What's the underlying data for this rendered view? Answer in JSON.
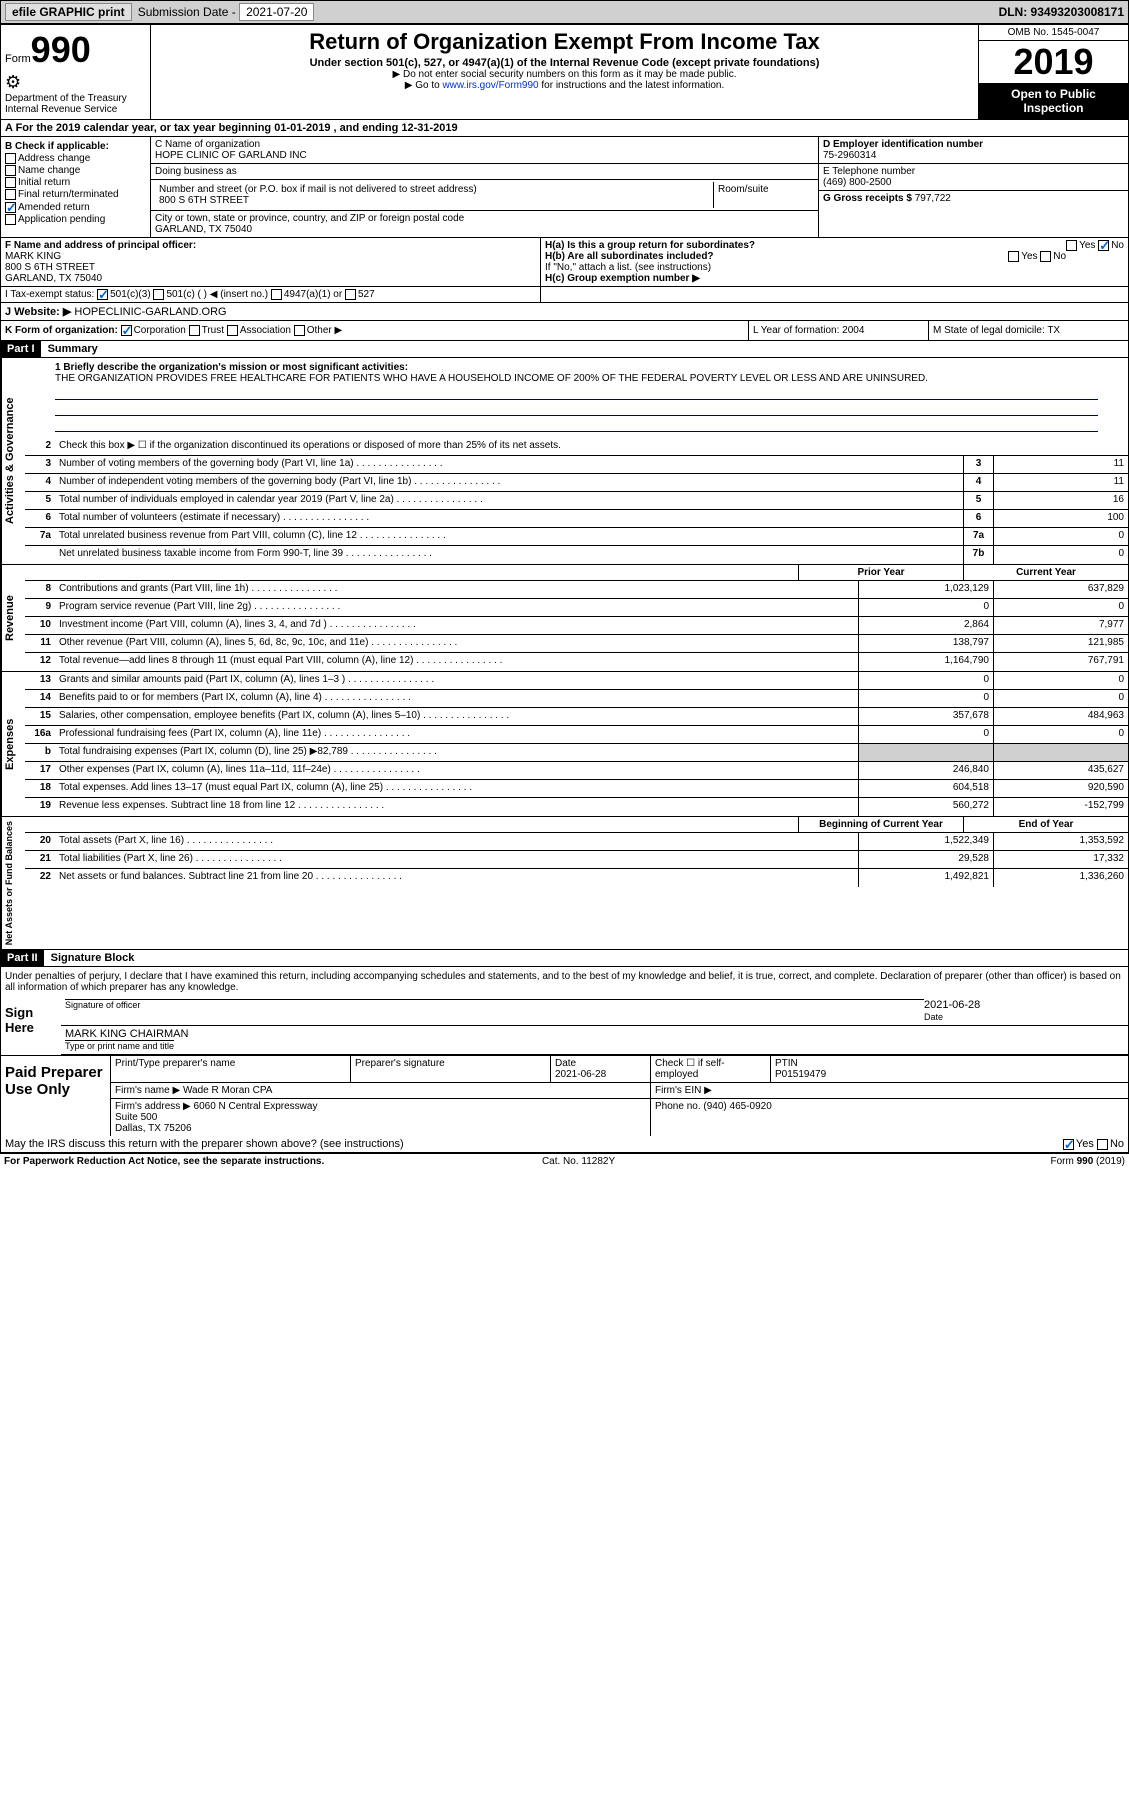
{
  "toolbar": {
    "efile": "efile GRAPHIC print",
    "subm_label": "Submission Date - ",
    "subm_date": "2021-07-20",
    "dln": "DLN: 93493203008171"
  },
  "header": {
    "form_word": "Form",
    "form_num": "990",
    "dept": "Department of the Treasury\nInternal Revenue Service",
    "title": "Return of Organization Exempt From Income Tax",
    "sub": "Under section 501(c), 527, or 4947(a)(1) of the Internal Revenue Code (except private foundations)",
    "note1": "▶ Do not enter social security numbers on this form as it may be made public.",
    "note2_pre": "▶ Go to ",
    "note2_link": "www.irs.gov/Form990",
    "note2_post": " for instructions and the latest information.",
    "omb": "OMB No. 1545-0047",
    "year": "2019",
    "open": "Open to Public Inspection"
  },
  "row_a": "A For the 2019 calendar year, or tax year beginning 01-01-2019    , and ending 12-31-2019",
  "box_b": {
    "title": "B Check if applicable:",
    "opts": [
      "Address change",
      "Name change",
      "Initial return",
      "Final return/terminated",
      "Amended return",
      "Application pending"
    ],
    "checked_idx": 4
  },
  "box_c": {
    "name_label": "C Name of organization",
    "name": "HOPE CLINIC OF GARLAND INC",
    "dba_label": "Doing business as",
    "dba": "",
    "addr_label": "Number and street (or P.O. box if mail is not delivered to street address)",
    "room_label": "Room/suite",
    "addr": "800 S 6TH STREET",
    "city_label": "City or town, state or province, country, and ZIP or foreign postal code",
    "city": "GARLAND, TX  75040"
  },
  "box_d": {
    "label": "D Employer identification number",
    "val": "75-2960314"
  },
  "box_e": {
    "label": "E Telephone number",
    "val": "(469) 800-2500"
  },
  "box_g": {
    "label": "G Gross receipts $",
    "val": "797,722"
  },
  "box_f": {
    "label": "F  Name and address of principal officer:",
    "name": "MARK KING",
    "addr1": "800 S 6TH STREET",
    "addr2": "GARLAND, TX  75040"
  },
  "box_h": {
    "ha": "H(a)  Is this a group return for subordinates?",
    "ha_yes": "Yes",
    "ha_no": "No",
    "hb": "H(b)  Are all subordinates included?",
    "hb_yes": "Yes",
    "hb_no": "No",
    "hb_note": "If \"No,\" attach a list. (see instructions)",
    "hc": "H(c)  Group exemption number ▶"
  },
  "row_i": {
    "label": "I   Tax-exempt status:",
    "opts": [
      "501(c)(3)",
      "501(c) (  ) ◀ (insert no.)",
      "4947(a)(1) or",
      "527"
    ]
  },
  "row_j": {
    "label": "J   Website: ▶",
    "val": "HOPECLINIC-GARLAND.ORG"
  },
  "row_k": {
    "label": "K Form of organization:",
    "opts": [
      "Corporation",
      "Trust",
      "Association",
      "Other ▶"
    ]
  },
  "row_l": "L Year of formation: 2004",
  "row_m": "M State of legal domicile: TX",
  "part1": {
    "hdr": "Part I",
    "title": "Summary"
  },
  "mission": {
    "label": "1  Briefly describe the organization's mission or most significant activities:",
    "text": "THE ORGANIZATION PROVIDES FREE HEALTHCARE FOR PATIENTS WHO HAVE A HOUSEHOLD INCOME OF 200% OF THE FEDERAL POVERTY LEVEL OR LESS AND ARE UNINSURED."
  },
  "line2": "Check this box ▶ ☐  if the organization discontinued its operations or disposed of more than 25% of its net assets.",
  "gov_lines": [
    {
      "n": "3",
      "d": "Number of voting members of the governing body (Part VI, line 1a)",
      "box": "3",
      "v": "11"
    },
    {
      "n": "4",
      "d": "Number of independent voting members of the governing body (Part VI, line 1b)",
      "box": "4",
      "v": "11"
    },
    {
      "n": "5",
      "d": "Total number of individuals employed in calendar year 2019 (Part V, line 2a)",
      "box": "5",
      "v": "16"
    },
    {
      "n": "6",
      "d": "Total number of volunteers (estimate if necessary)",
      "box": "6",
      "v": "100"
    },
    {
      "n": "7a",
      "d": "Total unrelated business revenue from Part VIII, column (C), line 12",
      "box": "7a",
      "v": "0"
    },
    {
      "n": "",
      "d": "Net unrelated business taxable income from Form 990-T, line 39",
      "box": "7b",
      "v": "0"
    }
  ],
  "col_headers": {
    "prior": "Prior Year",
    "current": "Current Year"
  },
  "rev_lines": [
    {
      "n": "8",
      "d": "Contributions and grants (Part VIII, line 1h)",
      "p": "1,023,129",
      "c": "637,829"
    },
    {
      "n": "9",
      "d": "Program service revenue (Part VIII, line 2g)",
      "p": "0",
      "c": "0"
    },
    {
      "n": "10",
      "d": "Investment income (Part VIII, column (A), lines 3, 4, and 7d )",
      "p": "2,864",
      "c": "7,977"
    },
    {
      "n": "11",
      "d": "Other revenue (Part VIII, column (A), lines 5, 6d, 8c, 9c, 10c, and 11e)",
      "p": "138,797",
      "c": "121,985"
    },
    {
      "n": "12",
      "d": "Total revenue—add lines 8 through 11 (must equal Part VIII, column (A), line 12)",
      "p": "1,164,790",
      "c": "767,791"
    }
  ],
  "exp_lines": [
    {
      "n": "13",
      "d": "Grants and similar amounts paid (Part IX, column (A), lines 1–3 )",
      "p": "0",
      "c": "0"
    },
    {
      "n": "14",
      "d": "Benefits paid to or for members (Part IX, column (A), line 4)",
      "p": "0",
      "c": "0"
    },
    {
      "n": "15",
      "d": "Salaries, other compensation, employee benefits (Part IX, column (A), lines 5–10)",
      "p": "357,678",
      "c": "484,963"
    },
    {
      "n": "16a",
      "d": "Professional fundraising fees (Part IX, column (A), line 11e)",
      "p": "0",
      "c": "0"
    },
    {
      "n": "b",
      "d": "Total fundraising expenses (Part IX, column (D), line 25) ▶82,789",
      "p": "",
      "c": "",
      "shade": true
    },
    {
      "n": "17",
      "d": "Other expenses (Part IX, column (A), lines 11a–11d, 11f–24e)",
      "p": "246,840",
      "c": "435,627"
    },
    {
      "n": "18",
      "d": "Total expenses. Add lines 13–17 (must equal Part IX, column (A), line 25)",
      "p": "604,518",
      "c": "920,590"
    },
    {
      "n": "19",
      "d": "Revenue less expenses. Subtract line 18 from line 12",
      "p": "560,272",
      "c": "-152,799"
    }
  ],
  "na_headers": {
    "beg": "Beginning of Current Year",
    "end": "End of Year"
  },
  "na_lines": [
    {
      "n": "20",
      "d": "Total assets (Part X, line 16)",
      "p": "1,522,349",
      "c": "1,353,592"
    },
    {
      "n": "21",
      "d": "Total liabilities (Part X, line 26)",
      "p": "29,528",
      "c": "17,332"
    },
    {
      "n": "22",
      "d": "Net assets or fund balances. Subtract line 21 from line 20",
      "p": "1,492,821",
      "c": "1,336,260"
    }
  ],
  "side_labels": {
    "gov": "Activities & Governance",
    "rev": "Revenue",
    "exp": "Expenses",
    "na": "Net Assets or Fund Balances"
  },
  "part2": {
    "hdr": "Part II",
    "title": "Signature Block"
  },
  "sig_decl": "Under penalties of perjury, I declare that I have examined this return, including accompanying schedules and statements, and to the best of my knowledge and belief, it is true, correct, and complete. Declaration of preparer (other than officer) is based on all information of which preparer has any knowledge.",
  "sign": {
    "here": "Sign Here",
    "officer_label": "Signature of officer",
    "date_label": "Date",
    "date": "2021-06-28",
    "name": "MARK KING  CHAIRMAN",
    "name_label": "Type or print name and title"
  },
  "prep": {
    "left": "Paid Preparer Use Only",
    "h1": "Print/Type preparer's name",
    "h2": "Preparer's signature",
    "h3": "Date",
    "date": "2021-06-28",
    "h4": "Check ☐ if self-employed",
    "h5": "PTIN",
    "ptin": "P01519479",
    "firm_label": "Firm's name    ▶",
    "firm": "Wade R Moran CPA",
    "ein_label": "Firm's EIN ▶",
    "addr_label": "Firm's address ▶",
    "addr": "6060 N Central Expressway\nSuite 500\nDallas, TX  75206",
    "phone_label": "Phone no.",
    "phone": "(940) 465-0920"
  },
  "discuss": "May the IRS discuss this return with the preparer shown above? (see instructions)",
  "discuss_yes": "Yes",
  "discuss_no": "No",
  "footer": {
    "left": "For Paperwork Reduction Act Notice, see the separate instructions.",
    "mid": "Cat. No. 11282Y",
    "right": "Form 990 (2019)"
  }
}
